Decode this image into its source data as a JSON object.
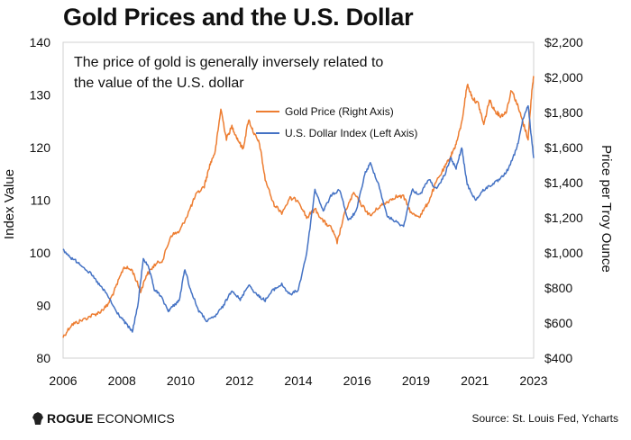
{
  "title": "Gold Prices and the U.S. Dollar",
  "annotation": [
    "The price of gold is generally inversely related to",
    "the value of the U.S. dollar"
  ],
  "brand": {
    "bold": "ROGUE",
    "rest": " ECONOMICS",
    "icon": "lion-head-icon"
  },
  "source": "Source: St. Louis Fed, Ycharts",
  "colors": {
    "gold": "#ED7D31",
    "dollar": "#4472C4"
  },
  "chart_data": {
    "type": "line",
    "title": "Gold Prices and the U.S. Dollar",
    "xlabel": "",
    "ylabel_left": "Index Value",
    "ylabel_right": "Price per Troy Ounce",
    "x_ticks": [
      "2006",
      "2008",
      "2010",
      "2012",
      "2014",
      "2016",
      "2019",
      "2021",
      "2023"
    ],
    "x_range": [
      2006.0,
      2023.0
    ],
    "y_left_ticks": [
      "80",
      "90",
      "100",
      "110",
      "120",
      "130",
      "140"
    ],
    "y_left_range": [
      80,
      140
    ],
    "y_right_ticks": [
      "$400",
      "$600",
      "$800",
      "$1,000",
      "$1,200",
      "$1,400",
      "$1,600",
      "$1,800",
      "$2,000",
      "$2,200"
    ],
    "y_right_range": [
      400,
      2200
    ],
    "legend_position": "top-center",
    "grid": false,
    "series": [
      {
        "name": "Gold Price (Right Axis)",
        "axis": "right",
        "color": "#ED7D31",
        "x": [
          2006.0,
          2006.3,
          2006.6,
          2007.0,
          2007.3,
          2007.6,
          2007.9,
          2008.2,
          2008.5,
          2008.8,
          2009.0,
          2009.3,
          2009.6,
          2009.9,
          2010.2,
          2010.5,
          2010.8,
          2011.1,
          2011.3,
          2011.5,
          2011.7,
          2011.9,
          2012.1,
          2012.3,
          2012.5,
          2012.7,
          2012.9,
          2013.1,
          2013.3,
          2013.6,
          2013.9,
          2014.2,
          2014.5,
          2014.8,
          2015.1,
          2015.4,
          2015.7,
          2015.9,
          2016.2,
          2016.5,
          2016.8,
          2017.1,
          2017.4,
          2017.7,
          2018.0,
          2018.3,
          2018.6,
          2018.9,
          2019.2,
          2019.5,
          2019.8,
          2020.0,
          2020.2,
          2020.4,
          2020.6,
          2020.8,
          2021.0,
          2021.2,
          2021.4,
          2021.6,
          2021.8,
          2022.0,
          2022.2,
          2022.4,
          2022.6,
          2022.8,
          2022.95,
          2023.0
        ],
        "values": [
          520,
          590,
          610,
          640,
          660,
          700,
          800,
          920,
          900,
          780,
          870,
          930,
          960,
          1100,
          1120,
          1220,
          1330,
          1380,
          1500,
          1580,
          1820,
          1650,
          1720,
          1650,
          1590,
          1760,
          1680,
          1620,
          1420,
          1280,
          1230,
          1310,
          1300,
          1200,
          1250,
          1180,
          1140,
          1060,
          1240,
          1340,
          1270,
          1210,
          1260,
          1290,
          1320,
          1320,
          1220,
          1210,
          1290,
          1410,
          1490,
          1550,
          1620,
          1740,
          1960,
          1880,
          1850,
          1730,
          1870,
          1810,
          1780,
          1800,
          1930,
          1850,
          1750,
          1650,
          1950,
          2000
        ]
      },
      {
        "name": "U.S. Dollar Index (Left Axis)",
        "axis": "left",
        "color": "#4472C4",
        "x": [
          2006.0,
          2006.3,
          2006.6,
          2007.0,
          2007.3,
          2007.6,
          2007.9,
          2008.2,
          2008.5,
          2008.7,
          2008.9,
          2009.1,
          2009.3,
          2009.5,
          2009.8,
          2010.0,
          2010.2,
          2010.4,
          2010.6,
          2010.9,
          2011.2,
          2011.5,
          2011.8,
          2012.1,
          2012.4,
          2012.7,
          2013.0,
          2013.3,
          2013.6,
          2013.9,
          2014.2,
          2014.5,
          2014.8,
          2015.1,
          2015.4,
          2015.7,
          2016.0,
          2016.3,
          2016.6,
          2016.9,
          2017.1,
          2017.4,
          2017.7,
          2018.0,
          2018.3,
          2018.6,
          2018.9,
          2019.2,
          2019.5,
          2019.8,
          2020.0,
          2020.2,
          2020.4,
          2020.6,
          2020.9,
          2021.2,
          2021.5,
          2021.8,
          2022.1,
          2022.4,
          2022.6,
          2022.8,
          2023.0
        ],
        "values": [
          100.5,
          99,
          98,
          96,
          94,
          92,
          89,
          87,
          85,
          90,
          99,
          97,
          93,
          92,
          89,
          90,
          91,
          97,
          93,
          89,
          87,
          88,
          90,
          93,
          91,
          94,
          92,
          91,
          93,
          94,
          92,
          93,
          100,
          112,
          108,
          111,
          112,
          106,
          108,
          115,
          117,
          113,
          107,
          106,
          105,
          112,
          111,
          114,
          112,
          115,
          118,
          116,
          120,
          113,
          110,
          112,
          113,
          114,
          116,
          120,
          125,
          128,
          118
        ]
      }
    ]
  }
}
